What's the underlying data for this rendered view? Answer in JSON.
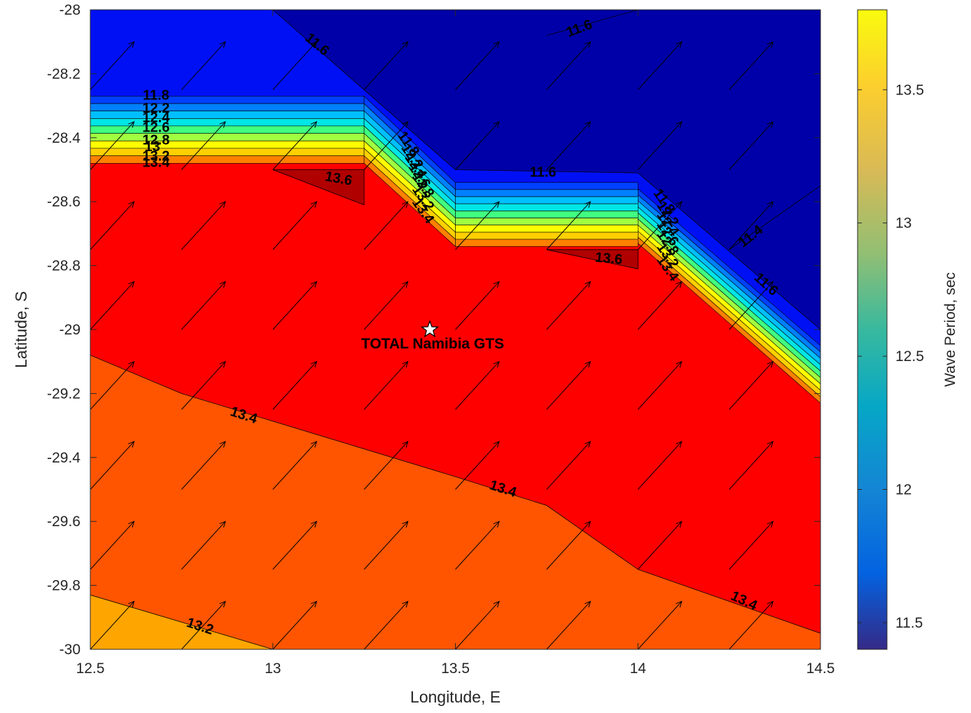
{
  "chart_data": {
    "type": "contour",
    "title": "",
    "xlabel": "Longitude, E",
    "ylabel": "Latitude, S",
    "xlim": [
      12.5,
      14.5
    ],
    "ylim": [
      -30,
      -28
    ],
    "x_ticks": [
      12.5,
      13,
      13.5,
      14,
      14.5
    ],
    "x_tick_labels": [
      "12.5",
      "13",
      "13.5",
      "14",
      "14.5"
    ],
    "y_ticks": [
      -28,
      -28.2,
      -28.4,
      -28.6,
      -28.8,
      -29,
      -29.2,
      -29.4,
      -29.6,
      -29.8,
      -30
    ],
    "y_tick_labels": [
      "-28",
      "-28.2",
      "-28.4",
      "-28.6",
      "-28.8",
      "-29",
      "-29.2",
      "-29.4",
      "-29.6",
      "-29.8",
      "-30"
    ],
    "grid": false,
    "colorbar": {
      "label": "Wave Period, sec",
      "range": [
        11.4,
        13.8
      ],
      "ticks": [
        11.5,
        12,
        12.5,
        13,
        13.5
      ],
      "tick_labels": [
        "11.5",
        "12",
        "12.5",
        "13",
        "13.5"
      ],
      "colormap": "parula"
    },
    "regions": [
      {
        "name": "lt-11.6",
        "value": 11.5,
        "color": "#0000a8",
        "polygon": [
          [
            13.0,
            -28.0
          ],
          [
            14.5,
            -28.0
          ],
          [
            14.5,
            -29.0
          ],
          [
            14.0,
            -28.51
          ],
          [
            13.5,
            -28.5
          ],
          [
            13.25,
            -28.25
          ]
        ]
      },
      {
        "name": "11.6-11.8",
        "value": 11.7,
        "color": "#0010f5",
        "polygon": [
          [
            12.5,
            -28.0
          ],
          [
            13.0,
            -28.0
          ],
          [
            13.25,
            -28.25
          ],
          [
            13.5,
            -28.5
          ],
          [
            14.0,
            -28.51
          ],
          [
            14.5,
            -29.0
          ],
          [
            14.5,
            -29.05
          ],
          [
            14.0,
            -28.56
          ],
          [
            13.5,
            -28.54
          ],
          [
            13.25,
            -28.28
          ],
          [
            12.5,
            -28.27
          ]
        ]
      },
      {
        "name": "13.4-13.6",
        "value": 13.5,
        "color": "#ff0000",
        "polygon": [
          [
            12.5,
            -28.48
          ],
          [
            13.25,
            -28.48
          ],
          [
            13.5,
            -28.74
          ],
          [
            14.0,
            -28.73
          ],
          [
            14.5,
            -29.23
          ],
          [
            14.5,
            -29.95
          ],
          [
            14.0,
            -29.75
          ],
          [
            13.75,
            -29.55
          ],
          [
            13.5,
            -29.46
          ],
          [
            12.75,
            -29.2
          ],
          [
            12.5,
            -29.08
          ]
        ]
      },
      {
        "name": "13.2-13.4",
        "value": 13.3,
        "color": "#ff5500",
        "polygon": [
          [
            12.5,
            -29.08
          ],
          [
            12.75,
            -29.2
          ],
          [
            13.5,
            -29.46
          ],
          [
            13.75,
            -29.55
          ],
          [
            14.0,
            -29.75
          ],
          [
            14.5,
            -29.95
          ],
          [
            14.5,
            -30.0
          ],
          [
            13.0,
            -30.0
          ],
          [
            12.5,
            -29.83
          ]
        ]
      },
      {
        "name": "13.0-13.2",
        "value": 13.1,
        "color": "#ffa500",
        "polygon": [
          [
            12.5,
            -29.83
          ],
          [
            13.0,
            -30.0
          ],
          [
            12.5,
            -30.0
          ]
        ]
      },
      {
        "name": "gt-13.6-a",
        "value": 13.7,
        "color": "#b00000",
        "polygon": [
          [
            13.0,
            -28.5
          ],
          [
            13.25,
            -28.5
          ],
          [
            13.25,
            -28.61
          ]
        ]
      },
      {
        "name": "gt-13.6-b",
        "value": 13.7,
        "color": "#b00000",
        "polygon": [
          [
            13.75,
            -28.75
          ],
          [
            14.0,
            -28.75
          ],
          [
            14.0,
            -28.81
          ]
        ]
      }
    ],
    "transition_bands": {
      "colors": [
        "#0040ff",
        "#0080ff",
        "#00bfff",
        "#00e5e5",
        "#40ff80",
        "#a0ff40",
        "#ffff00",
        "#ffd000",
        "#ff8000"
      ],
      "west": {
        "x0": 12.5,
        "x1": 13.25,
        "top": -28.27,
        "bottom": -28.48
      },
      "middle": {
        "x0": 13.5,
        "x1": 14.0,
        "top": -28.54,
        "bottom": -28.74
      },
      "east": {
        "x0": 14.0,
        "x1": 14.5,
        "top": -28.56,
        "bottom": -28.73
      }
    },
    "contour_lines": [
      {
        "level": "11.6",
        "points": [
          [
            13.0,
            -28.0
          ],
          [
            13.25,
            -28.25
          ],
          [
            13.5,
            -28.5
          ],
          [
            14.0,
            -28.51
          ],
          [
            14.5,
            -29.0
          ]
        ]
      },
      {
        "level": "11.6",
        "points": [
          [
            13.75,
            -28.08
          ],
          [
            14.0,
            -28.0
          ]
        ]
      },
      {
        "level": "11.4",
        "points": [
          [
            14.25,
            -28.75
          ],
          [
            14.5,
            -28.55
          ]
        ]
      },
      {
        "level": "13.4",
        "points": [
          [
            12.5,
            -29.08
          ],
          [
            12.75,
            -29.2
          ],
          [
            13.5,
            -29.46
          ],
          [
            13.75,
            -29.55
          ],
          [
            14.0,
            -29.75
          ],
          [
            14.5,
            -29.95
          ]
        ]
      },
      {
        "level": "13.2",
        "points": [
          [
            12.5,
            -29.83
          ],
          [
            13.0,
            -30.0
          ]
        ]
      },
      {
        "level": "13.6",
        "points": [
          [
            13.0,
            -28.5
          ],
          [
            13.25,
            -28.5
          ],
          [
            13.25,
            -28.61
          ],
          [
            13.0,
            -28.5
          ]
        ]
      },
      {
        "level": "13.6",
        "points": [
          [
            13.75,
            -28.75
          ],
          [
            14.0,
            -28.75
          ],
          [
            14.0,
            -28.81
          ],
          [
            13.75,
            -28.75
          ]
        ]
      }
    ],
    "contour_labels": [
      {
        "text": "11.6",
        "x": 13.12,
        "y": -28.11,
        "angle": 40
      },
      {
        "text": "11.6",
        "x": 13.84,
        "y": -28.06,
        "angle": -20
      },
      {
        "text": "11.6",
        "x": 13.74,
        "y": -28.51,
        "angle": 0
      },
      {
        "text": "11.4",
        "x": 14.31,
        "y": -28.71,
        "angle": -38
      },
      {
        "text": "11.6",
        "x": 14.35,
        "y": -28.86,
        "angle": 42
      },
      {
        "text": "13.6",
        "x": 13.18,
        "y": -28.53,
        "angle": 10
      },
      {
        "text": "13.6",
        "x": 13.92,
        "y": -28.78,
        "angle": 5
      },
      {
        "text": "13.4",
        "x": 12.92,
        "y": -29.27,
        "angle": 18
      },
      {
        "text": "13.4",
        "x": 13.63,
        "y": -29.5,
        "angle": 18
      },
      {
        "text": "13.4",
        "x": 14.29,
        "y": -29.85,
        "angle": 25
      },
      {
        "text": "13.2",
        "x": 12.8,
        "y": -29.93,
        "angle": 18
      },
      {
        "text": "11.8",
        "x": 12.68,
        "y": -28.27,
        "angle": 0
      },
      {
        "text": "12.2",
        "x": 12.68,
        "y": -28.31,
        "angle": 0
      },
      {
        "text": "12.4",
        "x": 12.68,
        "y": -28.34,
        "angle": 0
      },
      {
        "text": "12.6",
        "x": 12.68,
        "y": -28.37,
        "angle": 0
      },
      {
        "text": "12.8",
        "x": 12.68,
        "y": -28.41,
        "angle": 0
      },
      {
        "text": "13",
        "x": 12.67,
        "y": -28.43,
        "angle": 0
      },
      {
        "text": "13.2",
        "x": 12.68,
        "y": -28.46,
        "angle": 0
      },
      {
        "text": "13.4",
        "x": 12.68,
        "y": -28.48,
        "angle": 0
      },
      {
        "text": "11.8",
        "x": 13.37,
        "y": -28.42,
        "angle": 55
      },
      {
        "text": "12.2",
        "x": 13.38,
        "y": -28.46,
        "angle": 55
      },
      {
        "text": "12.4",
        "x": 13.39,
        "y": -28.49,
        "angle": 55
      },
      {
        "text": "12.6",
        "x": 13.4,
        "y": -28.52,
        "angle": 55
      },
      {
        "text": "12.8",
        "x": 13.41,
        "y": -28.55,
        "angle": 55
      },
      {
        "text": "13.2",
        "x": 13.41,
        "y": -28.59,
        "angle": 55
      },
      {
        "text": "13.4",
        "x": 13.41,
        "y": -28.63,
        "angle": 55
      },
      {
        "text": "11.8",
        "x": 14.07,
        "y": -28.6,
        "angle": 55
      },
      {
        "text": "12.2",
        "x": 14.08,
        "y": -28.64,
        "angle": 55
      },
      {
        "text": "12.4",
        "x": 14.08,
        "y": -28.67,
        "angle": 55
      },
      {
        "text": "12.6",
        "x": 14.08,
        "y": -28.7,
        "angle": 55
      },
      {
        "text": "12.8",
        "x": 14.08,
        "y": -28.73,
        "angle": 55
      },
      {
        "text": "13.2",
        "x": 14.08,
        "y": -28.77,
        "angle": 55
      },
      {
        "text": "13.4",
        "x": 14.08,
        "y": -28.81,
        "angle": 55
      }
    ],
    "quiver": {
      "x": [
        12.5,
        12.75,
        13.0,
        13.25,
        13.5,
        13.75,
        14.0,
        14.25,
        14.5
      ],
      "y": [
        -28.25,
        -28.5,
        -28.75,
        -29.0,
        -29.25,
        -29.5,
        -29.75,
        -30.0
      ],
      "u": 0.12,
      "v": 0.15
    },
    "annotations": [
      {
        "text": "TOTAL Namibia GTS",
        "x": 13.43,
        "y": -29.0,
        "marker": "star"
      }
    ]
  }
}
